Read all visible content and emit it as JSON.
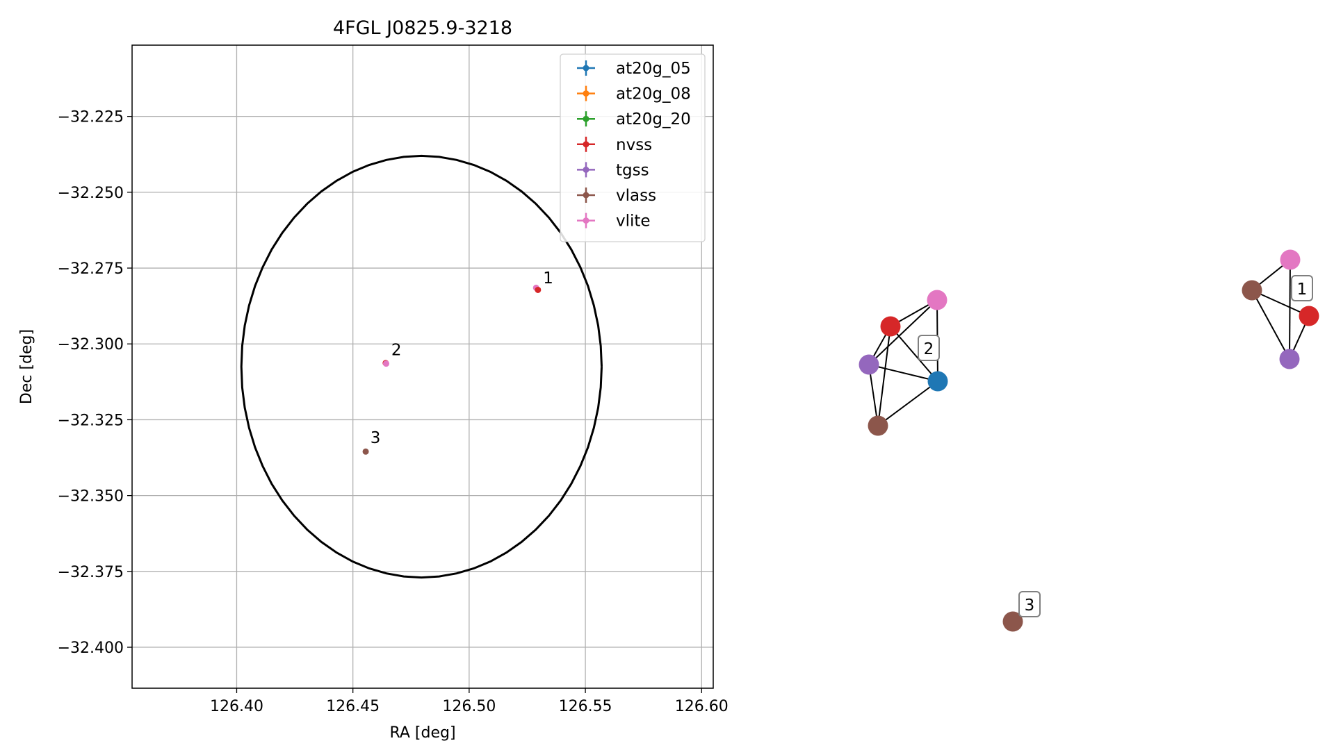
{
  "chart_data": [
    {
      "type": "scatter",
      "title": "4FGL J0825.9-3218",
      "xlabel": "RA [deg]",
      "ylabel": "Dec [deg]",
      "xlim": [
        126.355,
        126.605
      ],
      "ylim": [
        -32.4135,
        -32.2015
      ],
      "x_ticks": [
        126.4,
        126.45,
        126.5,
        126.55,
        126.6
      ],
      "x_tick_labels": [
        "126.40",
        "126.45",
        "126.50",
        "126.55",
        "126.60"
      ],
      "y_ticks": [
        -32.225,
        -32.25,
        -32.275,
        -32.3,
        -32.325,
        -32.35,
        -32.375,
        -32.4
      ],
      "y_tick_labels": [
        "−32.225",
        "−32.250",
        "−32.275",
        "−32.300",
        "−32.325",
        "−32.350",
        "−32.375",
        "−32.400"
      ],
      "grid": true,
      "legend_position": "top-right",
      "legend": [
        {
          "name": "at20g_05",
          "color": "#1f77b4"
        },
        {
          "name": "at20g_08",
          "color": "#ff7f0e"
        },
        {
          "name": "at20g_20",
          "color": "#2ca02c"
        },
        {
          "name": "nvss",
          "color": "#d62728"
        },
        {
          "name": "tgss",
          "color": "#9467bd"
        },
        {
          "name": "vlass",
          "color": "#8c564b"
        },
        {
          "name": "vlite",
          "color": "#e377c2"
        }
      ],
      "ellipse": {
        "center": [
          126.4795,
          -32.3075
        ],
        "semi_axis_ra": 0.0775,
        "semi_axis_dec": 0.0695,
        "color": "#000000"
      },
      "points": [
        {
          "ra": 126.5288,
          "dec": -32.2815,
          "series": "vlite"
        },
        {
          "ra": 126.5296,
          "dec": -32.2822,
          "series": "nvss"
        },
        {
          "ra": 126.4641,
          "dec": -32.3063,
          "series": "nvss"
        },
        {
          "ra": 126.4643,
          "dec": -32.3065,
          "series": "vlite"
        },
        {
          "ra": 126.4555,
          "dec": -32.3355,
          "series": "vlass"
        }
      ],
      "annotations": [
        {
          "text": "1",
          "ra": 126.5318,
          "dec": -32.28
        },
        {
          "text": "2",
          "ra": 126.4665,
          "dec": -32.3037
        },
        {
          "text": "3",
          "ra": 126.4575,
          "dec": -32.3327
        }
      ]
    },
    {
      "type": "network",
      "nodes": [
        {
          "id": "g1_vlite",
          "series": "vlite",
          "color": "#e377c2"
        },
        {
          "id": "g1_vlass",
          "series": "vlass",
          "color": "#8c564b"
        },
        {
          "id": "g1_nvss",
          "series": "nvss",
          "color": "#d62728"
        },
        {
          "id": "g1_tgss",
          "series": "tgss",
          "color": "#9467bd"
        },
        {
          "id": "g2_vlite",
          "series": "vlite",
          "color": "#e377c2"
        },
        {
          "id": "g2_nvss",
          "series": "nvss",
          "color": "#d62728"
        },
        {
          "id": "g2_tgss",
          "series": "tgss",
          "color": "#9467bd"
        },
        {
          "id": "g2_at20g",
          "series": "at20g_05",
          "color": "#1f77b4"
        },
        {
          "id": "g2_vlass",
          "series": "vlass",
          "color": "#8c564b"
        },
        {
          "id": "g3_vlass",
          "series": "vlass",
          "color": "#8c564b"
        }
      ],
      "edges": [
        [
          "g1_vlass",
          "g1_vlite"
        ],
        [
          "g1_vlass",
          "g1_nvss"
        ],
        [
          "g1_vlass",
          "g1_tgss"
        ],
        [
          "g1_vlite",
          "g1_tgss"
        ],
        [
          "g1_nvss",
          "g1_tgss"
        ],
        [
          "g2_nvss",
          "g2_vlite"
        ],
        [
          "g2_nvss",
          "g2_tgss"
        ],
        [
          "g2_nvss",
          "g2_at20g"
        ],
        [
          "g2_nvss",
          "g2_vlass"
        ],
        [
          "g2_vlite",
          "g2_tgss"
        ],
        [
          "g2_vlite",
          "g2_at20g"
        ],
        [
          "g2_tgss",
          "g2_at20g"
        ],
        [
          "g2_tgss",
          "g2_vlass"
        ],
        [
          "g2_at20g",
          "g2_vlass"
        ]
      ],
      "labels": [
        {
          "text": "1",
          "group": 1
        },
        {
          "text": "2",
          "group": 2
        },
        {
          "text": "3",
          "group": 3
        }
      ]
    }
  ]
}
